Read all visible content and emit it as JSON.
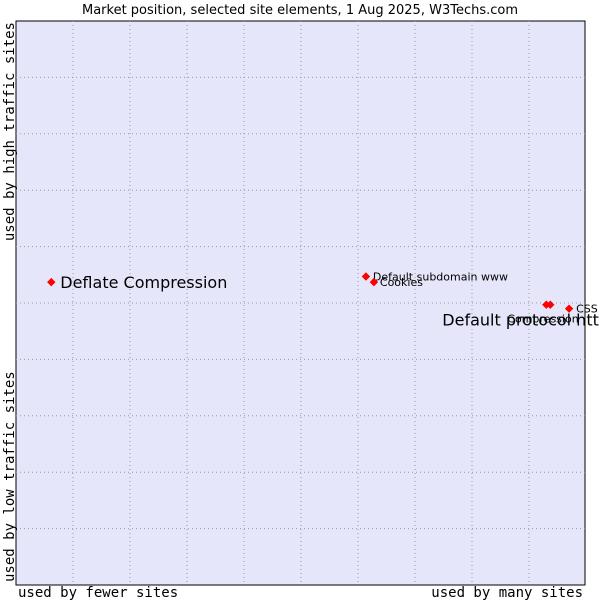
{
  "chart_data": {
    "type": "scatter",
    "title": "Market position, selected site elements, 1 Aug 2025, W3Techs.com",
    "xlabel_left": "used by fewer sites",
    "xlabel_right": "used by many sites",
    "ylabel_top": "used by high traffic sites",
    "ylabel_bottom": "used by low traffic sites",
    "xlim": [
      0,
      100
    ],
    "ylim": [
      0,
      100
    ],
    "grid": true,
    "point_color": "#ff0000",
    "plot_background": "#e6e6fa",
    "points": [
      {
        "name": "Deflate Compression",
        "x": 6.2,
        "y": 53.7,
        "label_size": "large"
      },
      {
        "name": "Default subdomain www",
        "x": 61.5,
        "y": 54.7,
        "label_size": "small"
      },
      {
        "name": "Cookies",
        "x": 62.9,
        "y": 53.7,
        "label_size": "small"
      },
      {
        "name": "Compression",
        "x": 93.2,
        "y": 49.7,
        "label_size": "small"
      },
      {
        "name": "Default protocol https",
        "x": 93.9,
        "y": 49.7,
        "label_size": "large"
      },
      {
        "name": "CSS",
        "x": 97.2,
        "y": 49.0,
        "label_size": "small"
      }
    ]
  }
}
